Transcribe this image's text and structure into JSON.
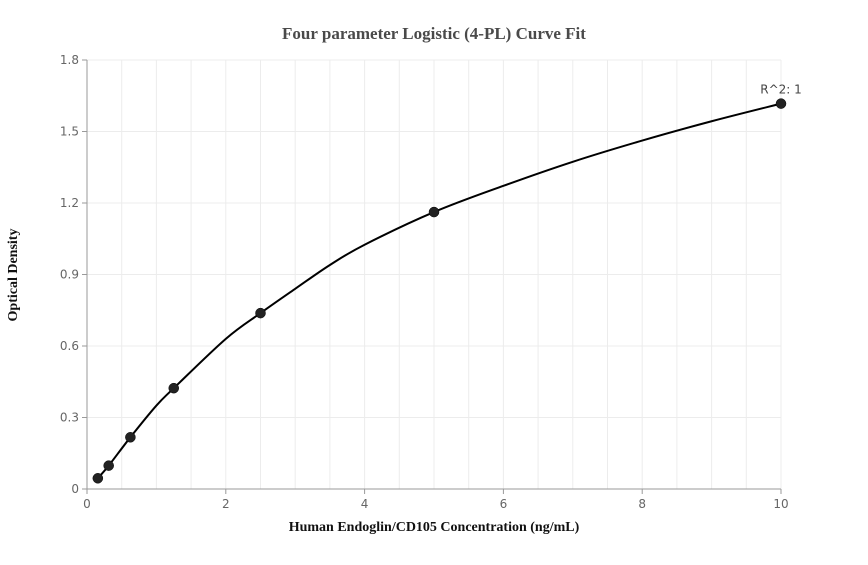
{
  "chart_data": {
    "type": "scatter",
    "title": "Four parameter Logistic (4-PL) Curve Fit",
    "xlabel": "Human Endoglin/CD105 Concentration (ng/mL)",
    "ylabel": "Optical Density",
    "xlim": [
      0,
      10
    ],
    "ylim": [
      0,
      1.8
    ],
    "x_ticks": [
      0,
      2,
      4,
      6,
      8,
      10
    ],
    "x_tick_labels": [
      "0",
      "2",
      "4",
      "6",
      "8",
      "10"
    ],
    "y_ticks": [
      0,
      0.3,
      0.6,
      0.9,
      1.2,
      1.5,
      1.8
    ],
    "y_tick_labels": [
      "0",
      "0.3",
      "0.6",
      "0.9",
      "1.2",
      "1.5",
      "1.8"
    ],
    "grid": true,
    "series": [
      {
        "kind": "points",
        "x": [
          0.156,
          0.3125,
          0.625,
          1.25,
          2.5,
          5,
          10
        ],
        "y": [
          0.045,
          0.098,
          0.217,
          0.423,
          0.738,
          1.162,
          1.617
        ],
        "color": "#222222"
      },
      {
        "kind": "fit-curve",
        "x": [
          0.156,
          0.3125,
          0.625,
          1.0,
          1.25,
          2.0,
          2.5,
          3.0,
          3.5,
          4.0,
          5.0,
          6.0,
          7.0,
          8.0,
          9.0,
          10.0
        ],
        "y": [
          0.045,
          0.098,
          0.217,
          0.35,
          0.423,
          0.63,
          0.738,
          0.84,
          0.94,
          1.025,
          1.162,
          1.272,
          1.373,
          1.462,
          1.543,
          1.617
        ],
        "color": "#000000"
      }
    ],
    "annotations": [
      {
        "text": "R^2: 1",
        "x": 10,
        "y": 1.617
      }
    ]
  }
}
